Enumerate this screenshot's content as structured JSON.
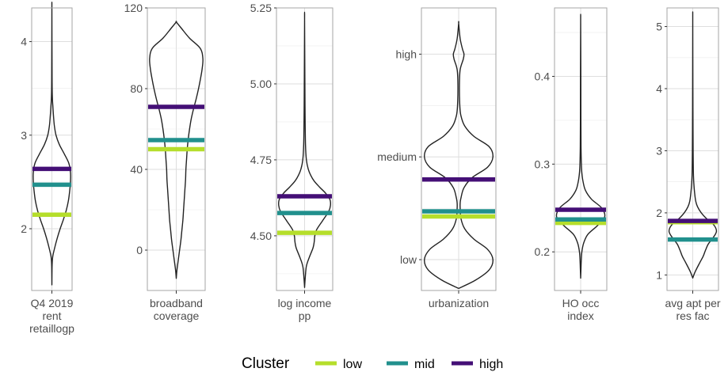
{
  "chart_data": {
    "type": "violin",
    "legend": {
      "title": "Cluster",
      "placement": "bottom",
      "entries": [
        {
          "label": "low",
          "color": "#b5de2b"
        },
        {
          "label": "mid",
          "color": "#21908d"
        },
        {
          "label": "high",
          "color": "#440f76"
        }
      ]
    },
    "panels": [
      {
        "xlabel": [
          "Q4 2019",
          "rent",
          "retaillogp"
        ],
        "ylim": [
          1.34,
          4.36
        ],
        "ticks": [
          {
            "v": 2,
            "label": "2"
          },
          {
            "v": 3,
            "label": "3"
          },
          {
            "v": 4,
            "label": "4"
          }
        ],
        "minor_ticks": [
          2.5,
          3.5
        ],
        "violin_range": [
          1.4,
          4.33
        ],
        "violin_shape": [
          [
            1.4,
            0
          ],
          [
            1.6,
            0.005
          ],
          [
            1.7,
            0.02
          ],
          [
            1.8,
            0.07
          ],
          [
            1.9,
            0.13
          ],
          [
            2.0,
            0.2
          ],
          [
            2.1,
            0.28
          ],
          [
            2.2,
            0.35
          ],
          [
            2.3,
            0.4
          ],
          [
            2.4,
            0.43
          ],
          [
            2.5,
            0.45
          ],
          [
            2.6,
            0.45
          ],
          [
            2.7,
            0.41
          ],
          [
            2.8,
            0.3
          ],
          [
            2.9,
            0.18
          ],
          [
            3.0,
            0.1
          ],
          [
            3.1,
            0.06
          ],
          [
            3.2,
            0.04
          ],
          [
            3.3,
            0.025
          ],
          [
            3.4,
            0.012
          ],
          [
            3.6,
            0.005
          ],
          [
            4.33,
            0
          ]
        ],
        "cluster_values": {
          "low": 2.15,
          "mid": 2.47,
          "high": 2.64
        }
      },
      {
        "xlabel": [
          "broadband",
          "coverage"
        ],
        "ylim": [
          -20,
          120
        ],
        "ticks": [
          {
            "v": 0,
            "label": "0"
          },
          {
            "v": 40,
            "label": "40"
          },
          {
            "v": 80,
            "label": "80"
          },
          {
            "v": 120,
            "label": "120"
          }
        ],
        "minor_ticks": [
          20,
          60,
          100
        ],
        "violin_range": [
          -14,
          113
        ],
        "violin_shape": [
          [
            -14,
            0
          ],
          [
            -10,
            0.02
          ],
          [
            -5,
            0.06
          ],
          [
            0,
            0.1
          ],
          [
            5,
            0.14
          ],
          [
            10,
            0.17
          ],
          [
            15,
            0.2
          ],
          [
            20,
            0.22
          ],
          [
            25,
            0.24
          ],
          [
            30,
            0.26
          ],
          [
            35,
            0.28
          ],
          [
            40,
            0.29
          ],
          [
            45,
            0.31
          ],
          [
            50,
            0.33
          ],
          [
            55,
            0.36
          ],
          [
            60,
            0.4
          ],
          [
            65,
            0.45
          ],
          [
            70,
            0.52
          ],
          [
            75,
            0.6
          ],
          [
            80,
            0.67
          ],
          [
            85,
            0.73
          ],
          [
            90,
            0.78
          ],
          [
            95,
            0.8
          ],
          [
            100,
            0.72
          ],
          [
            105,
            0.4
          ],
          [
            110,
            0.15
          ],
          [
            113,
            0
          ]
        ],
        "cluster_values": {
          "low": 50,
          "mid": 54.5,
          "high": 71
        }
      },
      {
        "xlabel": [
          "log income",
          "pp"
        ],
        "ylim": [
          4.32,
          5.25
        ],
        "ticks": [
          {
            "v": 4.5,
            "label": "4.50"
          },
          {
            "v": 4.75,
            "label": "4.75"
          },
          {
            "v": 5.0,
            "label": "5.00"
          },
          {
            "v": 5.25,
            "label": "5.25"
          }
        ],
        "minor_ticks": [
          4.375,
          4.625,
          4.875,
          5.125
        ],
        "violin_range": [
          4.33,
          5.21
        ],
        "violin_shape": [
          [
            4.33,
            0
          ],
          [
            4.36,
            0.01
          ],
          [
            4.4,
            0.03
          ],
          [
            4.43,
            0.08
          ],
          [
            4.46,
            0.14
          ],
          [
            4.48,
            0.16
          ],
          [
            4.5,
            0.17
          ],
          [
            4.52,
            0.2
          ],
          [
            4.55,
            0.3
          ],
          [
            4.58,
            0.4
          ],
          [
            4.6,
            0.43
          ],
          [
            4.62,
            0.42
          ],
          [
            4.64,
            0.35
          ],
          [
            4.66,
            0.25
          ],
          [
            4.68,
            0.16
          ],
          [
            4.7,
            0.1
          ],
          [
            4.72,
            0.06
          ],
          [
            4.75,
            0.03
          ],
          [
            4.8,
            0.015
          ],
          [
            4.9,
            0.008
          ],
          [
            5.0,
            0.005
          ],
          [
            5.21,
            0
          ]
        ],
        "cluster_values": {
          "low": 4.51,
          "mid": 4.575,
          "high": 4.63
        }
      },
      {
        "xlabel": [
          "urbanization"
        ],
        "ylim": [
          0.7,
          3.45
        ],
        "ticks": [
          {
            "v": 1,
            "label": "low"
          },
          {
            "v": 2,
            "label": "medium"
          },
          {
            "v": 3,
            "label": "high"
          }
        ],
        "minor_ticks": [
          1.5,
          2.5
        ],
        "violin_range": [
          0.72,
          3.3
        ],
        "violin_shape": [
          [
            0.72,
            0
          ],
          [
            0.8,
            0.22
          ],
          [
            0.9,
            0.4
          ],
          [
            1.0,
            0.45
          ],
          [
            1.1,
            0.38
          ],
          [
            1.2,
            0.2
          ],
          [
            1.3,
            0.08
          ],
          [
            1.4,
            0.03
          ],
          [
            1.5,
            0.02
          ],
          [
            1.55,
            0.02
          ],
          [
            1.6,
            0.03
          ],
          [
            1.7,
            0.07
          ],
          [
            1.8,
            0.18
          ],
          [
            1.9,
            0.38
          ],
          [
            2.0,
            0.45
          ],
          [
            2.1,
            0.4
          ],
          [
            2.2,
            0.2
          ],
          [
            2.3,
            0.08
          ],
          [
            2.4,
            0.03
          ],
          [
            2.5,
            0.015
          ],
          [
            2.7,
            0.01
          ],
          [
            2.85,
            0.02
          ],
          [
            2.95,
            0.06
          ],
          [
            3.0,
            0.07
          ],
          [
            3.05,
            0.05
          ],
          [
            3.15,
            0.02
          ],
          [
            3.3,
            0
          ]
        ],
        "cluster_values": {
          "low": 1.42,
          "mid": 1.47,
          "high": 1.78
        }
      },
      {
        "xlabel": [
          "HO occ",
          "index"
        ],
        "ylim": [
          0.156,
          0.478
        ],
        "ticks": [
          {
            "v": 0.2,
            "label": "0.2"
          },
          {
            "v": 0.3,
            "label": "0.3"
          },
          {
            "v": 0.4,
            "label": "0.4"
          }
        ],
        "minor_ticks": [
          0.25,
          0.35,
          0.45
        ],
        "violin_range": [
          0.17,
          0.463
        ],
        "violin_shape": [
          [
            0.17,
            0
          ],
          [
            0.18,
            0.005
          ],
          [
            0.19,
            0.01
          ],
          [
            0.2,
            0.02
          ],
          [
            0.21,
            0.05
          ],
          [
            0.22,
            0.12
          ],
          [
            0.23,
            0.28
          ],
          [
            0.24,
            0.4
          ],
          [
            0.25,
            0.35
          ],
          [
            0.26,
            0.18
          ],
          [
            0.27,
            0.08
          ],
          [
            0.28,
            0.04
          ],
          [
            0.29,
            0.02
          ],
          [
            0.3,
            0.012
          ],
          [
            0.32,
            0.006
          ],
          [
            0.35,
            0.004
          ],
          [
            0.4,
            0.003
          ],
          [
            0.463,
            0
          ]
        ],
        "cluster_values": {
          "low": 0.233,
          "mid": 0.237,
          "high": 0.248
        }
      },
      {
        "xlabel": [
          "avg apt per",
          "res fac"
        ],
        "ylim": [
          0.75,
          5.3
        ],
        "ticks": [
          {
            "v": 1,
            "label": "1"
          },
          {
            "v": 2,
            "label": "2"
          },
          {
            "v": 3,
            "label": "3"
          },
          {
            "v": 4,
            "label": "4"
          },
          {
            "v": 5,
            "label": "5"
          }
        ],
        "minor_ticks": [
          1.5,
          2.5,
          3.5,
          4.5
        ],
        "violin_range": [
          0.95,
          5.1
        ],
        "violin_shape": [
          [
            0.95,
            0
          ],
          [
            1.05,
            0.05
          ],
          [
            1.2,
            0.15
          ],
          [
            1.3,
            0.22
          ],
          [
            1.4,
            0.27
          ],
          [
            1.5,
            0.33
          ],
          [
            1.6,
            0.43
          ],
          [
            1.7,
            0.5
          ],
          [
            1.8,
            0.45
          ],
          [
            1.9,
            0.3
          ],
          [
            2.0,
            0.18
          ],
          [
            2.1,
            0.1
          ],
          [
            2.2,
            0.06
          ],
          [
            2.4,
            0.03
          ],
          [
            2.6,
            0.015
          ],
          [
            3.0,
            0.008
          ],
          [
            3.5,
            0.005
          ],
          [
            4.0,
            0.003
          ],
          [
            5.1,
            0
          ]
        ],
        "cluster_values": {
          "low": 1.85,
          "mid": 1.57,
          "high": 1.87
        }
      }
    ]
  }
}
